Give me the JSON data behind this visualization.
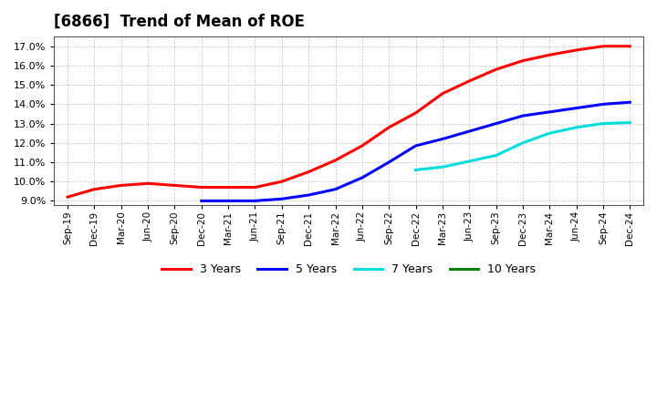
{
  "title": "[6866]  Trend of Mean of ROE",
  "title_fontsize": 12,
  "title_fontweight": "bold",
  "background_color": "#ffffff",
  "plot_bg_color": "#ffffff",
  "grid_color": "#aaaaaa",
  "ylim": [
    0.088,
    0.175
  ],
  "yticks": [
    0.09,
    0.1,
    0.11,
    0.12,
    0.13,
    0.14,
    0.15,
    0.16,
    0.17
  ],
  "xtick_labels": [
    "Sep-19",
    "Dec-19",
    "Mar-20",
    "Jun-20",
    "Sep-20",
    "Dec-20",
    "Mar-21",
    "Jun-21",
    "Sep-21",
    "Dec-21",
    "Mar-22",
    "Jun-22",
    "Sep-22",
    "Dec-22",
    "Mar-23",
    "Jun-23",
    "Sep-23",
    "Dec-23",
    "Mar-24",
    "Jun-24",
    "Sep-24",
    "Dec-24"
  ],
  "series": {
    "3 Years": {
      "color": "#ff0000",
      "x_indices": [
        0,
        1,
        2,
        3,
        4,
        5,
        6,
        7,
        8,
        9,
        10,
        11,
        12,
        13,
        14,
        15,
        16,
        17,
        18,
        19,
        20,
        21
      ],
      "values": [
        0.092,
        0.096,
        0.098,
        0.099,
        0.098,
        0.097,
        0.097,
        0.097,
        0.1,
        0.105,
        0.111,
        0.1185,
        0.128,
        0.1355,
        0.1455,
        0.152,
        0.158,
        0.1625,
        0.1655,
        0.168,
        0.17,
        0.17
      ]
    },
    "5 Years": {
      "color": "#0000ff",
      "x_indices": [
        5,
        6,
        7,
        8,
        9,
        10,
        11,
        12,
        13,
        14,
        15,
        16,
        17,
        18,
        19,
        20,
        21
      ],
      "values": [
        0.09,
        0.09,
        0.09,
        0.091,
        0.093,
        0.096,
        0.102,
        0.11,
        0.1185,
        0.122,
        0.126,
        0.13,
        0.134,
        0.136,
        0.138,
        0.14,
        0.141
      ]
    },
    "7 Years": {
      "color": "#00dddd",
      "x_indices": [
        13,
        14,
        15,
        16,
        17,
        18,
        19,
        20,
        21
      ],
      "values": [
        0.106,
        0.1075,
        0.1105,
        0.1135,
        0.12,
        0.125,
        0.128,
        0.13,
        0.1305
      ]
    },
    "10 Years": {
      "color": "#008000",
      "x_indices": [],
      "values": []
    }
  },
  "legend_labels": [
    "3 Years",
    "5 Years",
    "7 Years",
    "10 Years"
  ],
  "legend_colors": [
    "#ff0000",
    "#0000ff",
    "#00dddd",
    "#008000"
  ]
}
